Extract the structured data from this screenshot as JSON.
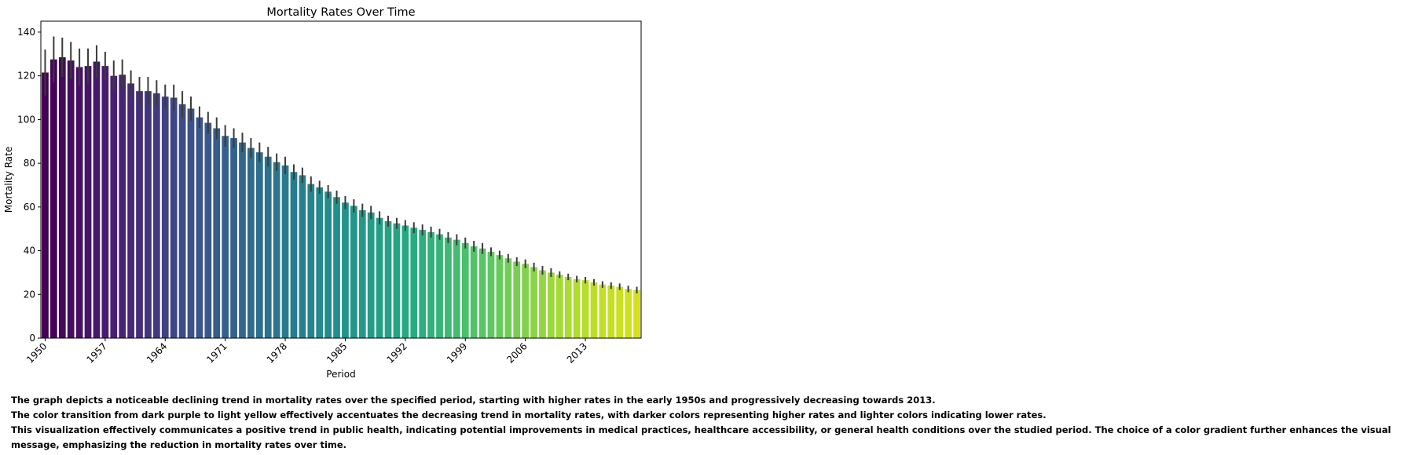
{
  "chart_data": {
    "type": "bar",
    "title": "Mortality Rates Over Time",
    "xlabel": "Period",
    "ylabel": "Mortality Rate",
    "ylim": [
      0,
      145
    ],
    "yticks": [
      0,
      20,
      40,
      60,
      80,
      100,
      120,
      140
    ],
    "xtick_labels": [
      "1950",
      "1957",
      "1964",
      "1971",
      "1978",
      "1985",
      "1992",
      "1999",
      "2006",
      "2013"
    ],
    "colormap": "viridis",
    "error_bars": true,
    "categories": [
      1950,
      1951,
      1952,
      1953,
      1954,
      1955,
      1956,
      1957,
      1958,
      1959,
      1960,
      1961,
      1962,
      1963,
      1964,
      1965,
      1966,
      1967,
      1968,
      1969,
      1970,
      1971,
      1972,
      1973,
      1974,
      1975,
      1976,
      1977,
      1978,
      1979,
      1980,
      1981,
      1982,
      1983,
      1984,
      1985,
      1986,
      1987,
      1988,
      1989,
      1990,
      1991,
      1992,
      1993,
      1994,
      1995,
      1996,
      1997,
      1998,
      1999,
      2000,
      2001,
      2002,
      2003,
      2004,
      2005,
      2006,
      2007,
      2008,
      2009,
      2010,
      2011,
      2012,
      2013,
      2014,
      2015,
      2016,
      2017,
      2018,
      2019
    ],
    "values": [
      121.5,
      127.5,
      128.5,
      127,
      124,
      124.5,
      126.5,
      124.5,
      120,
      120.5,
      116.5,
      113,
      113,
      112,
      110.5,
      110,
      107,
      105,
      101,
      98.5,
      96,
      92.5,
      91.5,
      89.5,
      87,
      85,
      83,
      80.5,
      79,
      76,
      74.5,
      70.5,
      69,
      67,
      64.5,
      62,
      60.5,
      58.5,
      57.5,
      55,
      53.5,
      52.5,
      51.5,
      50.5,
      49.5,
      48.5,
      47.5,
      46,
      45,
      43.5,
      42,
      41,
      39.5,
      38,
      36.5,
      35,
      34,
      32.5,
      31,
      30,
      29,
      28,
      27,
      26.5,
      25.5,
      24.5,
      24,
      23.5,
      22.5,
      22
    ],
    "errors": [
      10.5,
      10.5,
      9,
      8.5,
      8.5,
      8,
      7.5,
      6.5,
      7,
      7,
      6,
      6.5,
      6.5,
      6,
      5.5,
      6,
      6,
      5.5,
      5,
      5,
      5,
      5,
      4.5,
      4.5,
      4.5,
      4.5,
      4.5,
      4,
      4,
      3.5,
      3.5,
      3.5,
      3,
      3,
      3,
      3,
      3,
      3,
      3,
      3,
      2.5,
      2.5,
      2.5,
      2.5,
      2.5,
      2.5,
      2.5,
      2.5,
      2.5,
      2.5,
      2.5,
      2.5,
      2,
      2,
      2,
      2,
      2,
      2,
      2,
      2,
      1.5,
      1.5,
      1.5,
      1.5,
      1.5,
      1.5,
      1.5,
      1.5,
      1.5,
      1.5
    ]
  },
  "captions": [
    "The graph depicts a noticeable declining trend in mortality rates over the specified period, starting with higher rates in the early 1950s and progressively decreasing towards 2013.",
    "The color transition from dark purple to light yellow effectively accentuates the decreasing trend in mortality rates, with darker colors representing higher rates and lighter colors indicating lower rates.",
    "This visualization effectively communicates a positive trend in public health, indicating potential improvements in medical practices, healthcare accessibility, or general health conditions over the studied period. The choice of a color gradient further enhances the visual message, emphasizing the reduction in mortality rates over time."
  ]
}
